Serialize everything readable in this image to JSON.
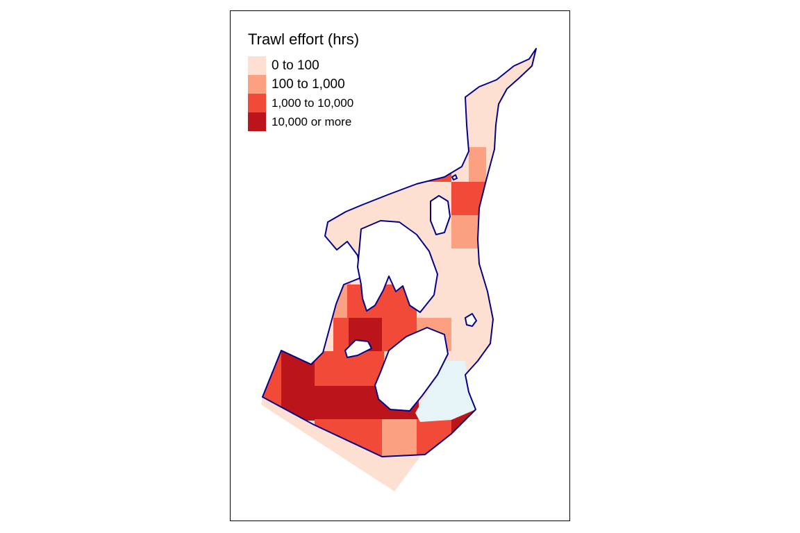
{
  "legend": {
    "title": "Trawl effort (hrs)",
    "items": [
      {
        "label": "0 to 100",
        "color": "#fee0d2"
      },
      {
        "label": "100 to 1,000",
        "color": "#fca082"
      },
      {
        "label": "1,000 to 10,000",
        "color": "#f24a38"
      },
      {
        "label": "10,000 or more",
        "color": "#bb141a"
      }
    ]
  },
  "colors": {
    "outline": "#00008b",
    "no_data_zone": "#e6f3f7",
    "land": "#ffffff"
  }
}
